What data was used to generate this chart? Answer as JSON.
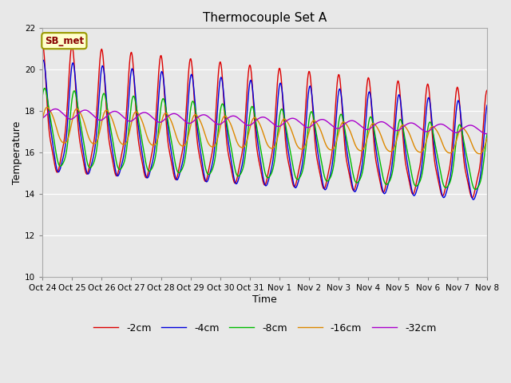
{
  "title": "Thermocouple Set A",
  "xlabel": "Time",
  "ylabel": "Temperature",
  "annotation": "SB_met",
  "ylim": [
    10,
    22
  ],
  "yticks": [
    10,
    12,
    14,
    16,
    18,
    20,
    22
  ],
  "colors": {
    "-2cm": "#dd0000",
    "-4cm": "#0000dd",
    "-8cm": "#00bb00",
    "-16cm": "#dd8800",
    "-32cm": "#aa00cc"
  },
  "legend_labels": [
    "-2cm",
    "-4cm",
    "-8cm",
    "-16cm",
    "-32cm"
  ],
  "fig_bg_color": "#e8e8e8",
  "plot_bg_color": "#e8e8e8",
  "tick_labels": [
    "Oct 24",
    "Oct 25",
    "Oct 26",
    "Oct 27",
    "Oct 28",
    "Oct 29",
    "Oct 30",
    "Oct 31",
    "Nov 1",
    "Nov 2",
    "Nov 3",
    "Nov 4",
    "Nov 5",
    "Nov 6",
    "Nov 7",
    "Nov 8"
  ],
  "n_days": 15,
  "n_pts": 720
}
